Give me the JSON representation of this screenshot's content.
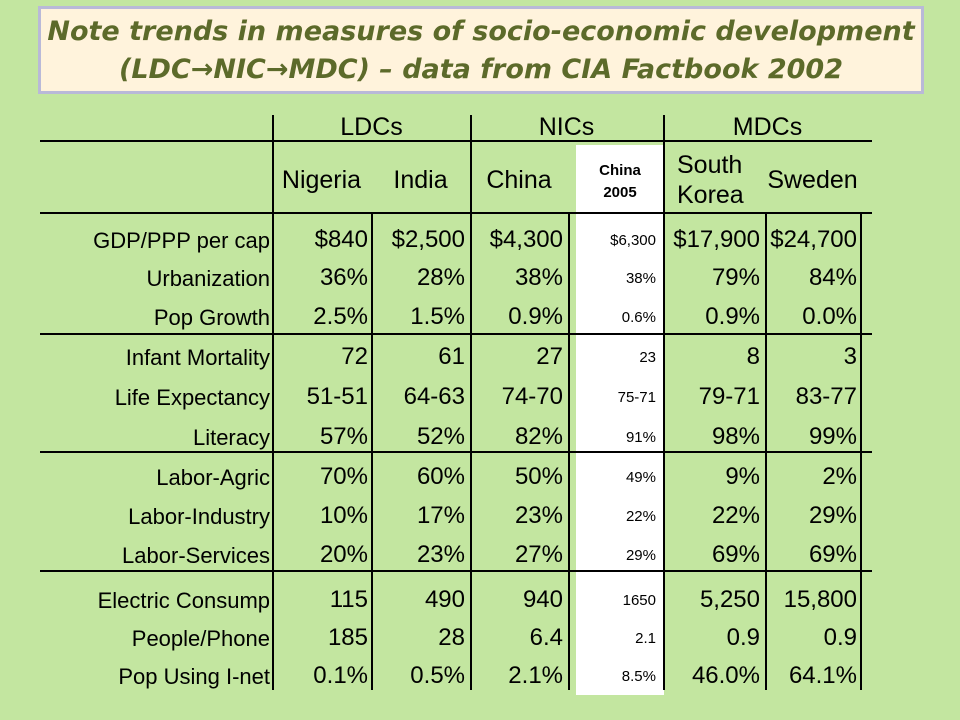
{
  "title": {
    "line1": "Note trends in measures of socio-economic development",
    "line2": "(LDC→NIC→MDC) – data from CIA Factbook 2002"
  },
  "groups": [
    "LDCs",
    "NICs",
    "MDCs"
  ],
  "columns": [
    "Nigeria",
    "India",
    "China",
    "China 2005",
    "South Korea",
    "Sweden"
  ],
  "rows": [
    {
      "label": "GDP/PPP per cap",
      "values": [
        "$840",
        "$2,500",
        "$4,300",
        "$6,300",
        "$17,900",
        "$24,700"
      ]
    },
    {
      "label": "Urbanization",
      "values": [
        "36%",
        "28%",
        "38%",
        "38%",
        "79%",
        "84%"
      ]
    },
    {
      "label": "Pop Growth",
      "values": [
        "2.5%",
        "1.5%",
        "0.9%",
        "0.6%",
        "0.9%",
        "0.0%"
      ]
    },
    {
      "label": "Infant Mortality",
      "values": [
        "72",
        "61",
        "27",
        "23",
        "8",
        "3"
      ]
    },
    {
      "label": "Life Expectancy",
      "values": [
        "51-51",
        "64-63",
        "74-70",
        "75-71",
        "79-71",
        "83-77"
      ]
    },
    {
      "label": "Literacy",
      "values": [
        "57%",
        "52%",
        "82%",
        "91%",
        "98%",
        "99%"
      ]
    },
    {
      "label": "Labor-Agric",
      "values": [
        "70%",
        "60%",
        "50%",
        "49%",
        "9%",
        "2%"
      ]
    },
    {
      "label": "Labor-Industry",
      "values": [
        "10%",
        "17%",
        "23%",
        "22%",
        "22%",
        "29%"
      ]
    },
    {
      "label": "Labor-Services",
      "values": [
        "20%",
        "23%",
        "27%",
        "29%",
        "69%",
        "69%"
      ]
    },
    {
      "label": "Electric Consump",
      "values": [
        "115",
        "490",
        "940",
        "1650",
        "5,250",
        "15,800"
      ]
    },
    {
      "label": "People/Phone",
      "values": [
        "185",
        "28",
        "6.4",
        "2.1",
        "0.9",
        "0.9"
      ]
    },
    {
      "label": "Pop Using I-net",
      "values": [
        "0.1%",
        "0.5%",
        "2.1%",
        "8.5%",
        "46.0%",
        "64.1%"
      ]
    }
  ],
  "colors": {
    "background": "#c3e6a0",
    "title_bg": "#fff3dc",
    "title_text": "#5c6a2a",
    "title_border": "#b9b9d8"
  }
}
